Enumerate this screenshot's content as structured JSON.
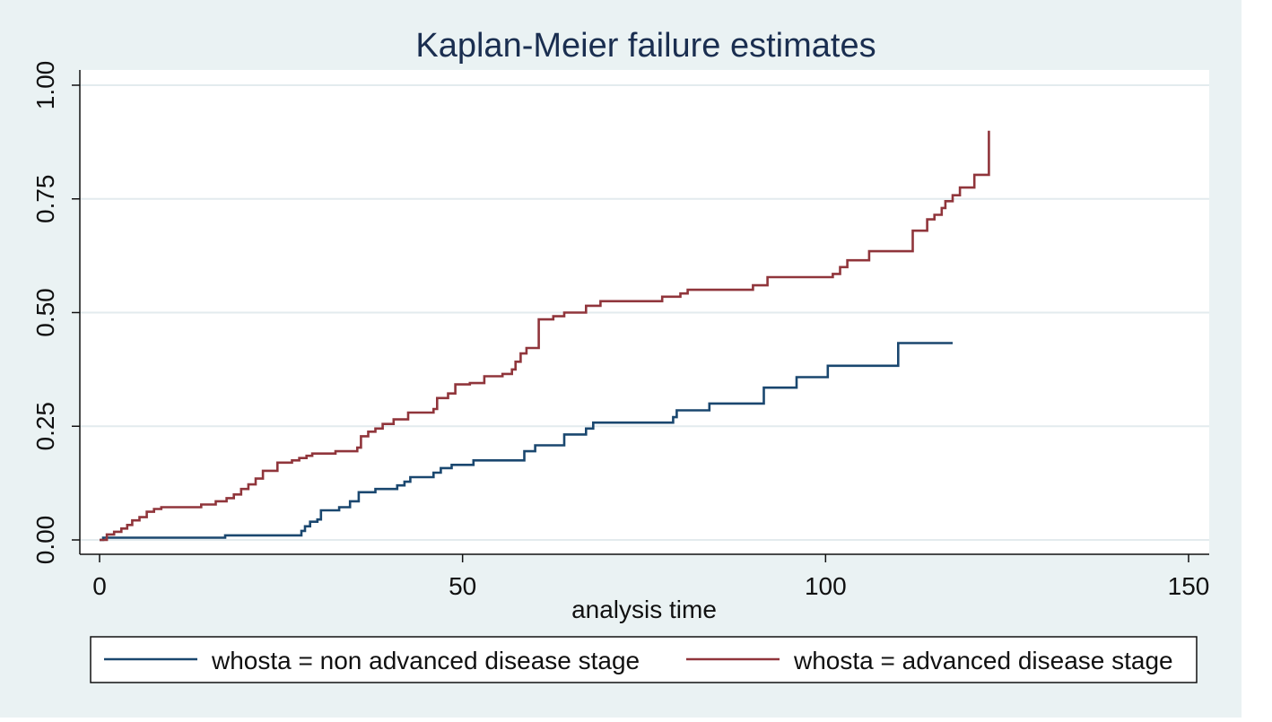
{
  "chart_data": {
    "type": "line",
    "step": true,
    "title": "Kaplan-Meier failure estimates",
    "xlabel": "analysis time",
    "ylabel": "",
    "xlim": [
      0,
      150
    ],
    "ylim": [
      0,
      1
    ],
    "x_ticks": [
      0,
      50,
      100,
      150
    ],
    "x_tick_labels": [
      "0",
      "50",
      "100",
      "150"
    ],
    "y_ticks": [
      0,
      0.25,
      0.5,
      0.75,
      1
    ],
    "y_tick_labels": [
      "0.00",
      "0.25",
      "0.50",
      "0.75",
      "1.00"
    ],
    "grid": true,
    "legend_position": "bottom",
    "colors": {
      "outer_background": "#eaf2f3",
      "plot_background": "#ffffff",
      "grid": "#e3ebee",
      "title": "#1a2e50",
      "text": "#111111",
      "non_advanced": "#1a476f",
      "advanced": "#90353b"
    },
    "series": [
      {
        "name": "whosta = non advanced disease stage",
        "color_key": "non_advanced",
        "points": [
          [
            0,
            0
          ],
          [
            0.5,
            0.005
          ],
          [
            17,
            0.005
          ],
          [
            17.3,
            0.01
          ],
          [
            27.3,
            0.01
          ],
          [
            27.8,
            0.02
          ],
          [
            28.3,
            0.03
          ],
          [
            29,
            0.04
          ],
          [
            30,
            0.045
          ],
          [
            30.5,
            0.065
          ],
          [
            33,
            0.072
          ],
          [
            34.5,
            0.085
          ],
          [
            35.7,
            0.105
          ],
          [
            38,
            0.112
          ],
          [
            41,
            0.12
          ],
          [
            42,
            0.128
          ],
          [
            42.8,
            0.138
          ],
          [
            46,
            0.148
          ],
          [
            47,
            0.158
          ],
          [
            48.5,
            0.165
          ],
          [
            51.5,
            0.175
          ],
          [
            58.5,
            0.195
          ],
          [
            60,
            0.208
          ],
          [
            64,
            0.232
          ],
          [
            67,
            0.245
          ],
          [
            68,
            0.258
          ],
          [
            79,
            0.27
          ],
          [
            79.5,
            0.285
          ],
          [
            84,
            0.3
          ],
          [
            91.5,
            0.335
          ],
          [
            96,
            0.358
          ],
          [
            100.3,
            0.383
          ],
          [
            110,
            0.433
          ],
          [
            117.5,
            0.433
          ]
        ]
      },
      {
        "name": "whosta = advanced disease stage",
        "color_key": "advanced",
        "points": [
          [
            0,
            0
          ],
          [
            1,
            0.012
          ],
          [
            2,
            0.018
          ],
          [
            3,
            0.025
          ],
          [
            3.8,
            0.033
          ],
          [
            4.5,
            0.043
          ],
          [
            5.5,
            0.05
          ],
          [
            6.5,
            0.062
          ],
          [
            7.5,
            0.068
          ],
          [
            8.5,
            0.072
          ],
          [
            14,
            0.078
          ],
          [
            16,
            0.085
          ],
          [
            17.5,
            0.092
          ],
          [
            18.5,
            0.1
          ],
          [
            19.5,
            0.112
          ],
          [
            20.5,
            0.122
          ],
          [
            21.5,
            0.135
          ],
          [
            22.5,
            0.152
          ],
          [
            24.5,
            0.17
          ],
          [
            26.5,
            0.175
          ],
          [
            27.5,
            0.18
          ],
          [
            28.5,
            0.185
          ],
          [
            29.3,
            0.19
          ],
          [
            32.5,
            0.195
          ],
          [
            35.5,
            0.203
          ],
          [
            36,
            0.228
          ],
          [
            37,
            0.238
          ],
          [
            38,
            0.245
          ],
          [
            39,
            0.255
          ],
          [
            40.5,
            0.265
          ],
          [
            42.5,
            0.28
          ],
          [
            46,
            0.288
          ],
          [
            46.5,
            0.312
          ],
          [
            48,
            0.322
          ],
          [
            49,
            0.342
          ],
          [
            51,
            0.345
          ],
          [
            53,
            0.36
          ],
          [
            55.5,
            0.365
          ],
          [
            56.8,
            0.375
          ],
          [
            57.3,
            0.392
          ],
          [
            58,
            0.41
          ],
          [
            58.8,
            0.422
          ],
          [
            60.5,
            0.485
          ],
          [
            62.5,
            0.492
          ],
          [
            64,
            0.5
          ],
          [
            67,
            0.515
          ],
          [
            69,
            0.525
          ],
          [
            77.5,
            0.535
          ],
          [
            80,
            0.542
          ],
          [
            81,
            0.55
          ],
          [
            90,
            0.56
          ],
          [
            92,
            0.578
          ],
          [
            101,
            0.585
          ],
          [
            102,
            0.6
          ],
          [
            103,
            0.615
          ],
          [
            106,
            0.635
          ],
          [
            112,
            0.68
          ],
          [
            114,
            0.705
          ],
          [
            115,
            0.715
          ],
          [
            116,
            0.73
          ],
          [
            116.5,
            0.745
          ],
          [
            117.5,
            0.758
          ],
          [
            118.5,
            0.775
          ],
          [
            120.5,
            0.803
          ],
          [
            122.5,
            0.9
          ]
        ]
      }
    ]
  }
}
